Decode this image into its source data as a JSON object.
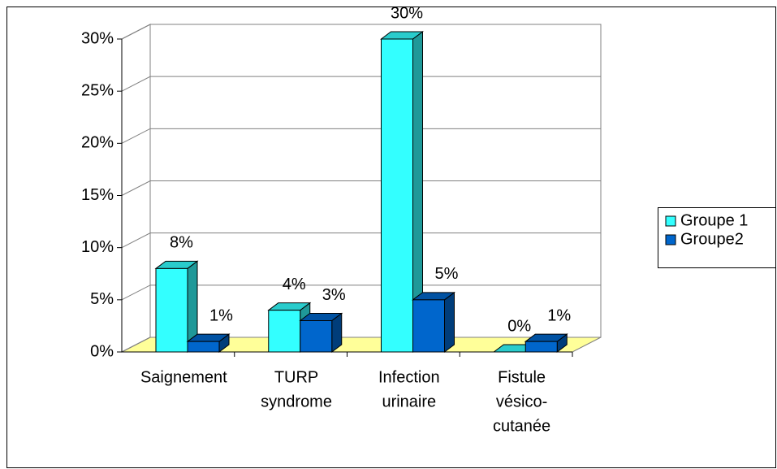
{
  "chart_data": {
    "type": "bar3d",
    "categories": [
      [
        "Saignement"
      ],
      [
        "TURP",
        "syndrome"
      ],
      [
        "Infection",
        "urinaire"
      ],
      [
        "Fistule",
        "vésico-",
        "cutanée"
      ]
    ],
    "series": [
      {
        "name": "Groupe 1",
        "color": "#33ffff",
        "values": [
          8,
          4,
          30,
          0
        ],
        "value_labels": [
          "8%",
          "4%",
          "30%",
          "0%"
        ]
      },
      {
        "name": "Groupe2",
        "color": "#0066cc",
        "values": [
          1,
          3,
          5,
          1
        ],
        "value_labels": [
          "1%",
          "3%",
          "5%",
          "1%"
        ]
      }
    ],
    "ylim": [
      0,
      30
    ],
    "yticks": [
      {
        "value": 0,
        "label": "0%"
      },
      {
        "value": 5,
        "label": "5%"
      },
      {
        "value": 10,
        "label": "10%"
      },
      {
        "value": 15,
        "label": "15%"
      },
      {
        "value": 20,
        "label": "20%"
      },
      {
        "value": 25,
        "label": "25%"
      },
      {
        "value": 30,
        "label": "30%"
      }
    ],
    "grid": true,
    "legend": "right"
  }
}
